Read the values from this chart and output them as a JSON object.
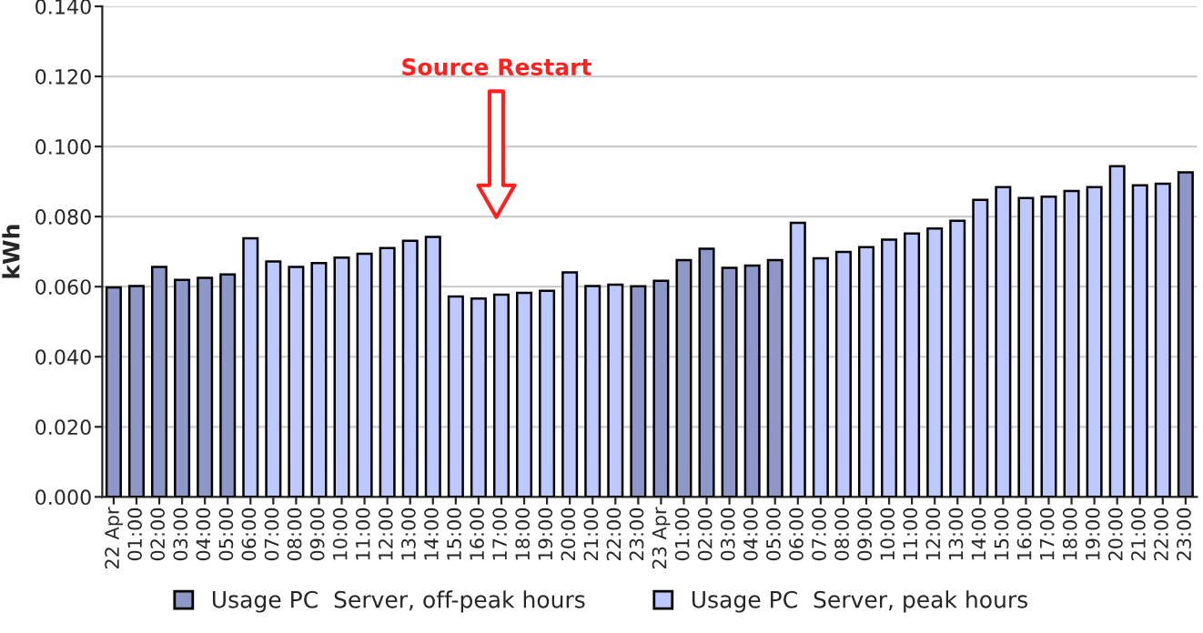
{
  "chart_data": {
    "type": "bar",
    "ylabel": "kWh",
    "categories": [
      "22 Apr",
      "01:00",
      "02:00",
      "03:00",
      "04:00",
      "05:00",
      "06:00",
      "07:00",
      "08:00",
      "09:00",
      "10:00",
      "11:00",
      "12:00",
      "13:00",
      "14:00",
      "15:00",
      "16:00",
      "17:00",
      "18:00",
      "19:00",
      "20:00",
      "21:00",
      "22:00",
      "23:00",
      "23 Apr",
      "01:00",
      "02:00",
      "03:00",
      "04:00",
      "05:00",
      "06:00",
      "07:00",
      "08:00",
      "09:00",
      "10:00",
      "11:00",
      "12:00",
      "13:00",
      "14:00",
      "15:00",
      "16:00",
      "17:00",
      "18:00",
      "19:00",
      "20:00",
      "21:00",
      "22:00",
      "23:00"
    ],
    "series": [
      {
        "name": "Usage PC  Server, off-peak hours",
        "color": "#8e98c8",
        "values": [
          0.0598,
          0.0602,
          0.0656,
          0.0619,
          0.0625,
          0.0635,
          null,
          null,
          null,
          null,
          null,
          null,
          null,
          null,
          null,
          null,
          null,
          null,
          null,
          null,
          null,
          null,
          null,
          0.0601,
          0.0617,
          0.0676,
          0.0708,
          0.0654,
          0.066,
          0.0676,
          null,
          null,
          null,
          null,
          null,
          null,
          null,
          null,
          null,
          null,
          null,
          null,
          null,
          null,
          null,
          null,
          null,
          0.0926
        ]
      },
      {
        "name": "Usage PC  Server, peak hours",
        "color": "#bdc8ff",
        "values": [
          null,
          null,
          null,
          null,
          null,
          null,
          0.0738,
          0.0672,
          0.0656,
          0.0667,
          0.0683,
          0.0694,
          0.071,
          0.0731,
          0.0742,
          0.0572,
          0.0566,
          0.0577,
          0.0582,
          0.0588,
          0.0641,
          0.0602,
          0.0606,
          null,
          null,
          null,
          null,
          null,
          null,
          null,
          0.0782,
          0.0681,
          0.0699,
          0.0713,
          0.0734,
          0.0752,
          0.0766,
          0.0788,
          0.0848,
          0.0884,
          0.0853,
          0.0857,
          0.0873,
          0.0884,
          0.0944,
          0.0889,
          0.0894,
          null
        ]
      }
    ],
    "ylim": [
      0,
      0.14
    ],
    "yticks": [
      {
        "value": 0,
        "label": "0.000"
      },
      {
        "value": 0.02,
        "label": "0.020"
      },
      {
        "value": 0.04,
        "label": "0.040"
      },
      {
        "value": 0.06,
        "label": "0.060"
      },
      {
        "value": 0.08,
        "label": "0.080"
      },
      {
        "value": 0.1,
        "label": "0.100"
      },
      {
        "value": 0.12,
        "label": "0.120"
      },
      {
        "value": 0.14,
        "label": "0.140"
      }
    ],
    "grid": "y",
    "legend": "bottom",
    "annotations": [
      "Source Restart"
    ]
  }
}
